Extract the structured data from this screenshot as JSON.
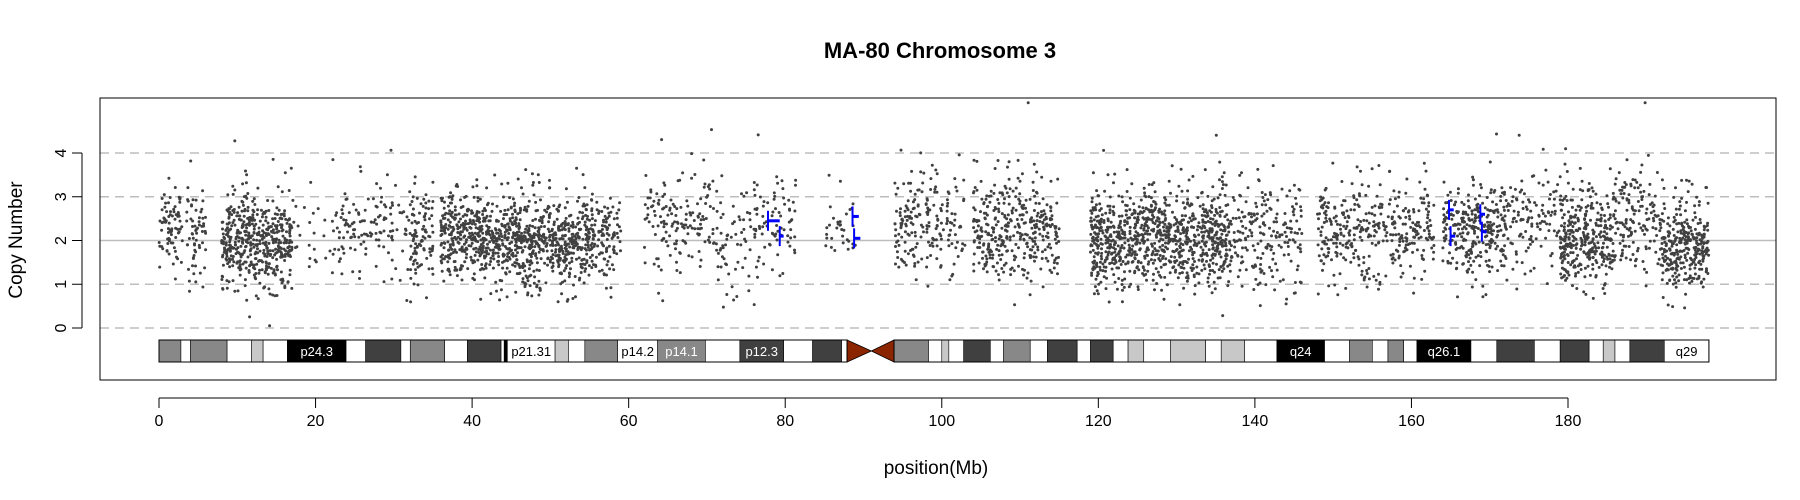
{
  "chart_data": {
    "type": "scatter",
    "title": "MA-80  Chromosome 3",
    "xlabel": "position(Mb)",
    "ylabel": "Copy Number",
    "xlim": [
      -7.5,
      206
    ],
    "ylim": [
      -1.2,
      5.2
    ],
    "x_ticks": [
      0,
      20,
      40,
      60,
      80,
      100,
      120,
      140,
      160,
      180
    ],
    "y_ticks": [
      0,
      1,
      2,
      3,
      4
    ],
    "dashed_reference_lines": [
      0,
      1,
      3,
      4
    ],
    "solid_reference_line": 2,
    "grid": false,
    "point_color": "#404040",
    "segment_color": "#0000ff",
    "chromosome_length_mb": 198,
    "ideogram_colors": {
      "gneg": "#ffffff",
      "gpos25": "#c8c8c8",
      "gpos50": "#888888",
      "gpos75": "#404040",
      "gpos100": "#000000",
      "acen": "#8b2500"
    },
    "ideogram_bands": [
      {
        "start": 0,
        "end": 2.8,
        "stain": "gpos50",
        "label": ""
      },
      {
        "start": 2.8,
        "end": 4.0,
        "stain": "gneg",
        "label": ""
      },
      {
        "start": 4.0,
        "end": 8.7,
        "stain": "gpos50",
        "label": ""
      },
      {
        "start": 8.7,
        "end": 11.8,
        "stain": "gneg",
        "label": ""
      },
      {
        "start": 11.8,
        "end": 13.3,
        "stain": "gpos25",
        "label": ""
      },
      {
        "start": 13.3,
        "end": 16.4,
        "stain": "gneg",
        "label": ""
      },
      {
        "start": 16.4,
        "end": 23.9,
        "stain": "gpos100",
        "label": "p24.3"
      },
      {
        "start": 23.9,
        "end": 26.4,
        "stain": "gneg",
        "label": ""
      },
      {
        "start": 26.4,
        "end": 30.9,
        "stain": "gpos75",
        "label": ""
      },
      {
        "start": 30.9,
        "end": 32.1,
        "stain": "gneg",
        "label": ""
      },
      {
        "start": 32.1,
        "end": 36.5,
        "stain": "gpos50",
        "label": ""
      },
      {
        "start": 36.5,
        "end": 39.4,
        "stain": "gneg",
        "label": ""
      },
      {
        "start": 39.4,
        "end": 43.7,
        "stain": "gpos75",
        "label": ""
      },
      {
        "start": 43.7,
        "end": 44.1,
        "stain": "gneg",
        "label": ""
      },
      {
        "start": 44.1,
        "end": 44.5,
        "stain": "gpos100",
        "label": ""
      },
      {
        "start": 44.5,
        "end": 50.6,
        "stain": "gneg",
        "label": "p21.31"
      },
      {
        "start": 50.6,
        "end": 52.3,
        "stain": "gpos25",
        "label": ""
      },
      {
        "start": 52.3,
        "end": 54.4,
        "stain": "gneg",
        "label": ""
      },
      {
        "start": 54.4,
        "end": 58.6,
        "stain": "gpos50",
        "label": ""
      },
      {
        "start": 58.6,
        "end": 63.7,
        "stain": "gneg",
        "label": "p14.2"
      },
      {
        "start": 63.7,
        "end": 69.8,
        "stain": "gpos50",
        "label": "p14.1"
      },
      {
        "start": 69.8,
        "end": 74.2,
        "stain": "gneg",
        "label": ""
      },
      {
        "start": 74.2,
        "end": 79.8,
        "stain": "gpos75",
        "label": "p12.3"
      },
      {
        "start": 79.8,
        "end": 83.5,
        "stain": "gneg",
        "label": ""
      },
      {
        "start": 83.5,
        "end": 87.2,
        "stain": "gpos75",
        "label": ""
      },
      {
        "start": 87.2,
        "end": 87.9,
        "stain": "gneg",
        "label": ""
      },
      {
        "start": 87.9,
        "end": 91.0,
        "stain": "acen",
        "label": ""
      },
      {
        "start": 91.0,
        "end": 93.9,
        "stain": "acen",
        "label": ""
      },
      {
        "start": 93.9,
        "end": 98.3,
        "stain": "gpos50",
        "label": ""
      },
      {
        "start": 98.3,
        "end": 100.0,
        "stain": "gneg",
        "label": ""
      },
      {
        "start": 100.0,
        "end": 100.9,
        "stain": "gpos25",
        "label": ""
      },
      {
        "start": 100.9,
        "end": 102.8,
        "stain": "gneg",
        "label": ""
      },
      {
        "start": 102.8,
        "end": 106.2,
        "stain": "gpos75",
        "label": ""
      },
      {
        "start": 106.2,
        "end": 107.9,
        "stain": "gneg",
        "label": ""
      },
      {
        "start": 107.9,
        "end": 111.3,
        "stain": "gpos50",
        "label": ""
      },
      {
        "start": 111.3,
        "end": 113.5,
        "stain": "gneg",
        "label": ""
      },
      {
        "start": 113.5,
        "end": 117.3,
        "stain": "gpos75",
        "label": ""
      },
      {
        "start": 117.3,
        "end": 119.0,
        "stain": "gneg",
        "label": ""
      },
      {
        "start": 119.0,
        "end": 121.9,
        "stain": "gpos75",
        "label": ""
      },
      {
        "start": 121.9,
        "end": 123.8,
        "stain": "gneg",
        "label": ""
      },
      {
        "start": 123.8,
        "end": 125.8,
        "stain": "gpos25",
        "label": ""
      },
      {
        "start": 125.8,
        "end": 129.2,
        "stain": "gneg",
        "label": ""
      },
      {
        "start": 129.2,
        "end": 133.7,
        "stain": "gpos25",
        "label": ""
      },
      {
        "start": 133.7,
        "end": 135.7,
        "stain": "gneg",
        "label": ""
      },
      {
        "start": 135.7,
        "end": 138.7,
        "stain": "gpos25",
        "label": ""
      },
      {
        "start": 138.7,
        "end": 142.8,
        "stain": "gneg",
        "label": ""
      },
      {
        "start": 142.8,
        "end": 148.9,
        "stain": "gpos100",
        "label": "q24"
      },
      {
        "start": 148.9,
        "end": 152.1,
        "stain": "gneg",
        "label": ""
      },
      {
        "start": 152.1,
        "end": 155.0,
        "stain": "gpos50",
        "label": ""
      },
      {
        "start": 155.0,
        "end": 157.0,
        "stain": "gneg",
        "label": ""
      },
      {
        "start": 157.0,
        "end": 159.0,
        "stain": "gpos50",
        "label": ""
      },
      {
        "start": 159.0,
        "end": 160.7,
        "stain": "gneg",
        "label": ""
      },
      {
        "start": 160.7,
        "end": 167.6,
        "stain": "gpos100",
        "label": "q26.1"
      },
      {
        "start": 167.6,
        "end": 170.9,
        "stain": "gneg",
        "label": ""
      },
      {
        "start": 170.9,
        "end": 175.7,
        "stain": "gpos75",
        "label": ""
      },
      {
        "start": 175.7,
        "end": 179.0,
        "stain": "gneg",
        "label": ""
      },
      {
        "start": 179.0,
        "end": 182.7,
        "stain": "gpos75",
        "label": ""
      },
      {
        "start": 182.7,
        "end": 184.5,
        "stain": "gneg",
        "label": ""
      },
      {
        "start": 184.5,
        "end": 186.0,
        "stain": "gpos25",
        "label": ""
      },
      {
        "start": 186.0,
        "end": 187.9,
        "stain": "gneg",
        "label": ""
      },
      {
        "start": 187.9,
        "end": 192.3,
        "stain": "gpos75",
        "label": ""
      },
      {
        "start": 192.3,
        "end": 198.0,
        "stain": "gneg",
        "label": "q29"
      }
    ],
    "point_clusters": [
      {
        "x": [
          0,
          3
        ],
        "density": 0.45,
        "mean": 2.3,
        "sd": 0.45
      },
      {
        "x": [
          3.5,
          6
        ],
        "density": 0.45,
        "mean": 2.1,
        "sd": 0.55
      },
      {
        "x": [
          8,
          17
        ],
        "density": 1.0,
        "mean": 1.95,
        "sd": 0.5
      },
      {
        "x": [
          17,
          23
        ],
        "density": 0.1,
        "mean": 2.3,
        "sd": 0.6
      },
      {
        "x": [
          23,
          33
        ],
        "density": 0.25,
        "mean": 2.2,
        "sd": 0.6
      },
      {
        "x": [
          32,
          35
        ],
        "density": 0.5,
        "mean": 1.9,
        "sd": 0.6
      },
      {
        "x": [
          36,
          41
        ],
        "density": 0.95,
        "mean": 2.15,
        "sd": 0.5
      },
      {
        "x": [
          41,
          55.5
        ],
        "density": 0.95,
        "mean": 1.95,
        "sd": 0.5
      },
      {
        "x": [
          55.5,
          59
        ],
        "density": 0.5,
        "mean": 2.1,
        "sd": 0.5
      },
      {
        "x": [
          62,
          72
        ],
        "density": 0.3,
        "mean": 2.3,
        "sd": 0.6
      },
      {
        "x": [
          72,
          76.5
        ],
        "density": 0.2,
        "mean": 2.0,
        "sd": 0.7
      },
      {
        "x": [
          76,
          81.5
        ],
        "density": 0.25,
        "mean": 2.4,
        "sd": 0.5
      },
      {
        "x": [
          85,
          89
        ],
        "density": 0.15,
        "mean": 2.3,
        "sd": 0.5
      },
      {
        "x": [
          94,
          103
        ],
        "density": 0.4,
        "mean": 2.3,
        "sd": 0.6
      },
      {
        "x": [
          104,
          115
        ],
        "density": 0.6,
        "mean": 2.2,
        "sd": 0.6
      },
      {
        "x": [
          119,
          137
        ],
        "density": 0.95,
        "mean": 2.05,
        "sd": 0.55
      },
      {
        "x": [
          137,
          146
        ],
        "density": 0.4,
        "mean": 2.1,
        "sd": 0.6
      },
      {
        "x": [
          148,
          163
        ],
        "density": 0.45,
        "mean": 2.2,
        "sd": 0.55
      },
      {
        "x": [
          164,
          172
        ],
        "density": 0.65,
        "mean": 2.25,
        "sd": 0.55
      },
      {
        "x": [
          172,
          180
        ],
        "density": 0.3,
        "mean": 2.4,
        "sd": 0.6
      },
      {
        "x": [
          179,
          186
        ],
        "density": 0.85,
        "mean": 2.0,
        "sd": 0.55
      },
      {
        "x": [
          186,
          192
        ],
        "density": 0.45,
        "mean": 2.4,
        "sd": 0.6
      },
      {
        "x": [
          192,
          198
        ],
        "density": 0.95,
        "mean": 1.85,
        "sd": 0.5
      }
    ],
    "segments": [
      {
        "x0": 77.8,
        "x1": 79.3,
        "y": 2.45
      },
      {
        "x0": 79.3,
        "x1": 79.8,
        "y": 2.1
      },
      {
        "x0": 88.6,
        "x1": 89.4,
        "y": 2.55
      },
      {
        "x0": 88.8,
        "x1": 89.6,
        "y": 2.05
      },
      {
        "x0": 164.8,
        "x1": 165.4,
        "y": 2.7
      },
      {
        "x0": 165.0,
        "x1": 165.6,
        "y": 2.1
      },
      {
        "x0": 168.8,
        "x1": 169.4,
        "y": 2.6
      },
      {
        "x0": 169.0,
        "x1": 169.6,
        "y": 2.2
      }
    ]
  }
}
